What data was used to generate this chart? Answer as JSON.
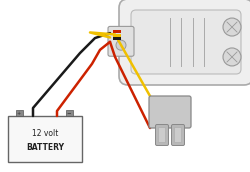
{
  "bg_color": "#ffffff",
  "battery_label1": "12 volt",
  "battery_label2": "BATTERY",
  "wire_black": "#1a1a1a",
  "wire_yellow": "#f0c000",
  "wire_red": "#cc2200",
  "strobe_edge": "#aaaaaa",
  "strobe_face": "#efefef",
  "battery_edge": "#666666",
  "battery_face": "#f8f8f8",
  "plug_face": "#c8c8c8",
  "plug_edge": "#888888"
}
